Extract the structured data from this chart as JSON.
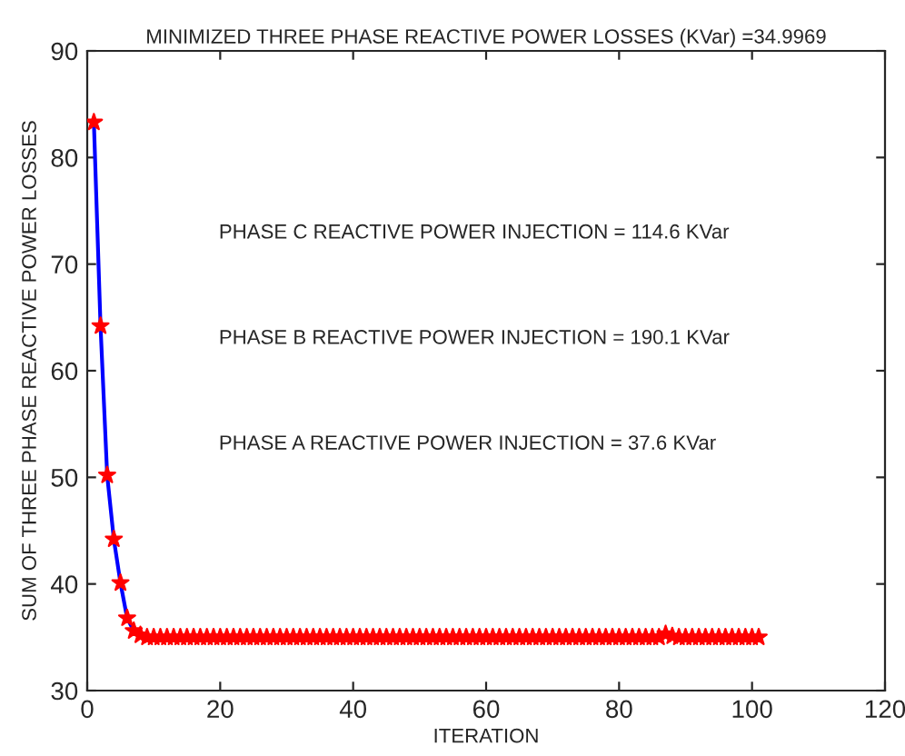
{
  "chart_data": {
    "type": "line",
    "title": "MINIMIZED THREE PHASE REACTIVE POWER LOSSES (KVar) =34.9969",
    "xlabel": "ITERATION",
    "ylabel": "SUM OF THREE PHASE REACTIVE POWER LOSSES",
    "x": [
      1,
      2,
      3,
      4,
      5,
      6,
      7,
      8,
      9,
      10,
      11,
      12,
      13,
      14,
      15,
      16,
      17,
      18,
      19,
      20,
      21,
      22,
      23,
      24,
      25,
      26,
      27,
      28,
      29,
      30,
      31,
      32,
      33,
      34,
      35,
      36,
      37,
      38,
      39,
      40,
      41,
      42,
      43,
      44,
      45,
      46,
      47,
      48,
      49,
      50,
      51,
      52,
      53,
      54,
      55,
      56,
      57,
      58,
      59,
      60,
      61,
      62,
      63,
      64,
      65,
      66,
      67,
      68,
      69,
      70,
      71,
      72,
      73,
      74,
      75,
      76,
      77,
      78,
      79,
      80,
      81,
      82,
      83,
      84,
      85,
      86,
      87,
      88,
      89,
      90,
      91,
      92,
      93,
      94,
      95,
      96,
      97,
      98,
      99,
      100,
      101
    ],
    "series": [
      {
        "color": "#0000ff",
        "marker": "none",
        "values": [
          83.3,
          64.2,
          50.2,
          44.2,
          40.1,
          36.8,
          35.6,
          null,
          null,
          null,
          null,
          null,
          null,
          null,
          null,
          null,
          null,
          null,
          null,
          null,
          null,
          null,
          null,
          null,
          null,
          null,
          null,
          null,
          null,
          null,
          null,
          null,
          null,
          null,
          null,
          null,
          null,
          null,
          null,
          null,
          null,
          null,
          null,
          null,
          null,
          null,
          null,
          null,
          null,
          null,
          null,
          null,
          null,
          null,
          null,
          null,
          null,
          null,
          null,
          null,
          null,
          null,
          null,
          null,
          null,
          null,
          null,
          null,
          null,
          null,
          null,
          null,
          null,
          null,
          null,
          null,
          null,
          null,
          null,
          null,
          null,
          null,
          null,
          null,
          null,
          null,
          null,
          null,
          null,
          null,
          null,
          null,
          null,
          null,
          null,
          null,
          null,
          null,
          null,
          null,
          null
        ]
      },
      {
        "type": "scatter",
        "color": "#ff0000",
        "marker": "star",
        "values": [
          83.3,
          64.2,
          50.2,
          44.2,
          40.1,
          36.8,
          35.6,
          35.2,
          35.0,
          35.0,
          35.0,
          35.0,
          35.0,
          35.0,
          35.0,
          35.0,
          35.0,
          35.0,
          35.0,
          35.0,
          35.0,
          35.0,
          35.0,
          35.0,
          35.0,
          35.0,
          35.0,
          35.0,
          35.0,
          35.0,
          35.0,
          35.0,
          35.0,
          35.0,
          35.0,
          35.0,
          35.0,
          35.0,
          35.0,
          35.0,
          35.0,
          35.0,
          35.0,
          35.0,
          35.0,
          35.0,
          35.0,
          35.0,
          35.0,
          35.0,
          35.0,
          35.0,
          35.0,
          35.0,
          35.0,
          35.0,
          35.0,
          35.0,
          35.0,
          35.0,
          35.0,
          35.0,
          35.0,
          35.0,
          35.0,
          35.0,
          35.0,
          35.0,
          35.0,
          35.0,
          35.0,
          35.0,
          35.0,
          35.0,
          35.0,
          35.0,
          35.0,
          35.0,
          35.0,
          35.0,
          35.0,
          35.0,
          35.0,
          35.0,
          35.0,
          35.0,
          35.3,
          35.1,
          35.0,
          35.0,
          35.0,
          35.0,
          35.0,
          35.0,
          35.0,
          35.0,
          35.0,
          35.0,
          35.0,
          35.0,
          35.0
        ]
      }
    ],
    "annotations": [
      "PHASE C REACTIVE POWER INJECTION = 114.6 KVar",
      "PHASE B REACTIVE POWER INJECTION = 190.1 KVar",
      "PHASE A REACTIVE POWER INJECTION = 37.6 KVar"
    ],
    "xlim": [
      0,
      120
    ],
    "xticks": [
      0,
      20,
      40,
      60,
      80,
      100,
      120
    ],
    "ylim": [
      30,
      90
    ],
    "yticks": [
      30,
      40,
      50,
      60,
      70,
      80,
      90
    ],
    "grid": false
  }
}
